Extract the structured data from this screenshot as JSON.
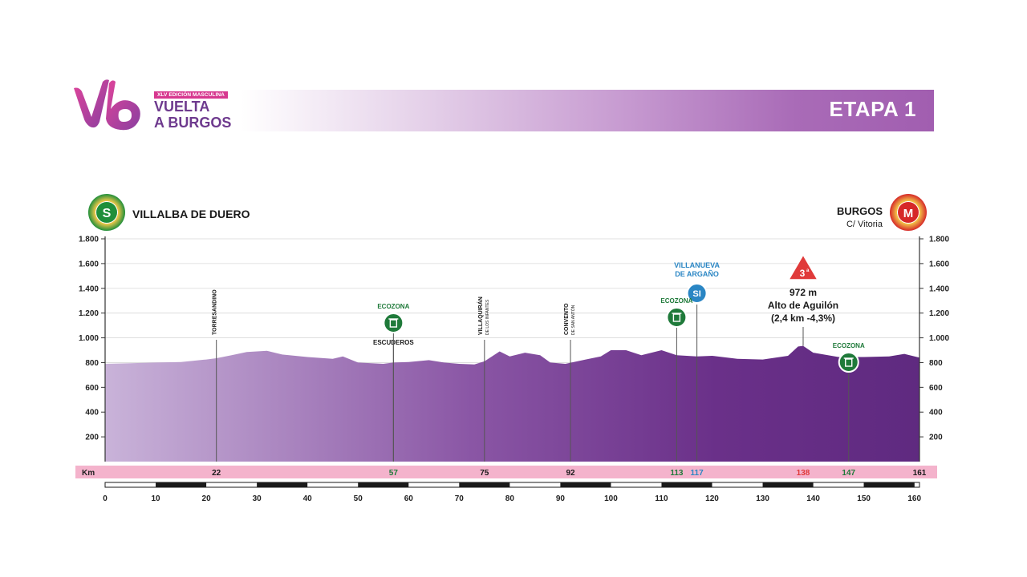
{
  "header": {
    "stage": "ETAPA 1",
    "logo": {
      "edition": "XLV EDICIÓN MASCULINA",
      "line1": "VUELTA",
      "line2": "A BURGOS"
    }
  },
  "start": {
    "badge": "S",
    "name": "VILLALBA DE DUERO"
  },
  "finish": {
    "badge": "M",
    "name": "BURGOS",
    "detail": "C/ Vitoria"
  },
  "colors": {
    "profile_light": "#c9b3d9",
    "profile_dark": "#5f2a80",
    "km_band": "#f4b3cc",
    "ecozona": "#1f7a3a",
    "sprint": "#2a86c4",
    "climb": "#e03a3a",
    "start": "#1f8f3a",
    "finish": "#d62828"
  },
  "chart_data": {
    "type": "area",
    "title": "",
    "xlabel": "Km",
    "ylabel": "",
    "xlim": [
      0,
      161
    ],
    "ylim": [
      0,
      1800
    ],
    "y_ticks": [
      "200",
      "400",
      "600",
      "800",
      "1.000",
      "1.200",
      "1.400",
      "1.600",
      "1.800"
    ],
    "y_tick_values": [
      200,
      400,
      600,
      800,
      1000,
      1200,
      1400,
      1600,
      1800
    ],
    "x_ticks": [
      "0",
      "10",
      "20",
      "30",
      "40",
      "50",
      "60",
      "70",
      "80",
      "90",
      "100",
      "110",
      "120",
      "130",
      "140",
      "150",
      "160"
    ],
    "x_tick_values": [
      0,
      10,
      20,
      30,
      40,
      50,
      60,
      70,
      80,
      90,
      100,
      110,
      120,
      130,
      140,
      150,
      160
    ],
    "grid": true,
    "profile": {
      "x": [
        0,
        5,
        10,
        15,
        20,
        22,
        25,
        28,
        32,
        35,
        40,
        45,
        47,
        50,
        55,
        57,
        60,
        64,
        67,
        70,
        73,
        75,
        78,
        80,
        83,
        86,
        88,
        91,
        95,
        98,
        100,
        103,
        106,
        110,
        113,
        117,
        120,
        125,
        130,
        135,
        137,
        138,
        140,
        145,
        150,
        155,
        158,
        161
      ],
      "y": [
        790,
        795,
        800,
        805,
        825,
        835,
        860,
        885,
        895,
        865,
        845,
        830,
        850,
        800,
        790,
        800,
        805,
        820,
        800,
        790,
        785,
        810,
        890,
        850,
        880,
        860,
        800,
        790,
        825,
        850,
        900,
        900,
        860,
        900,
        860,
        850,
        855,
        830,
        825,
        855,
        930,
        935,
        880,
        845,
        845,
        850,
        870,
        840
      ]
    },
    "km_markers": [
      {
        "label": "22",
        "km": 22
      },
      {
        "label": "57",
        "km": 57
      },
      {
        "label": "75",
        "km": 75
      },
      {
        "label": "92",
        "km": 92
      },
      {
        "label": "113",
        "km": 113
      },
      {
        "label": "117",
        "km": 117
      },
      {
        "label": "138",
        "km": 138
      },
      {
        "label": "147",
        "km": 147
      },
      {
        "label": "161",
        "km": 161
      }
    ],
    "places": [
      {
        "name": "TORRESANDINO",
        "km": 22,
        "alt": 835
      },
      {
        "name": "ESCUDEROS",
        "km": 57,
        "alt": 800
      },
      {
        "name": "VILLAQUIRÁN",
        "sub": "DE LOS INFANTES",
        "km": 75,
        "alt": 810
      },
      {
        "name": "CONVENTO",
        "sub": "DE SAN ANTÓN",
        "km": 92,
        "alt": 790
      }
    ],
    "ecozonas": [
      {
        "label": "ECOZONA",
        "km": 57
      },
      {
        "label": "ECOZONA",
        "km": 113
      },
      {
        "label": "ECOZONA",
        "km": 147
      }
    ],
    "sprint": {
      "badge": "SI",
      "name1": "VILLANUEVA",
      "name2": "DE ARGAÑO",
      "km": 117
    },
    "climb": {
      "category": "3",
      "sup": "a",
      "altitude": "972 m",
      "name": "Alto de Aguilón",
      "detail": "(2,4 km -4,3%)",
      "km": 138
    }
  }
}
